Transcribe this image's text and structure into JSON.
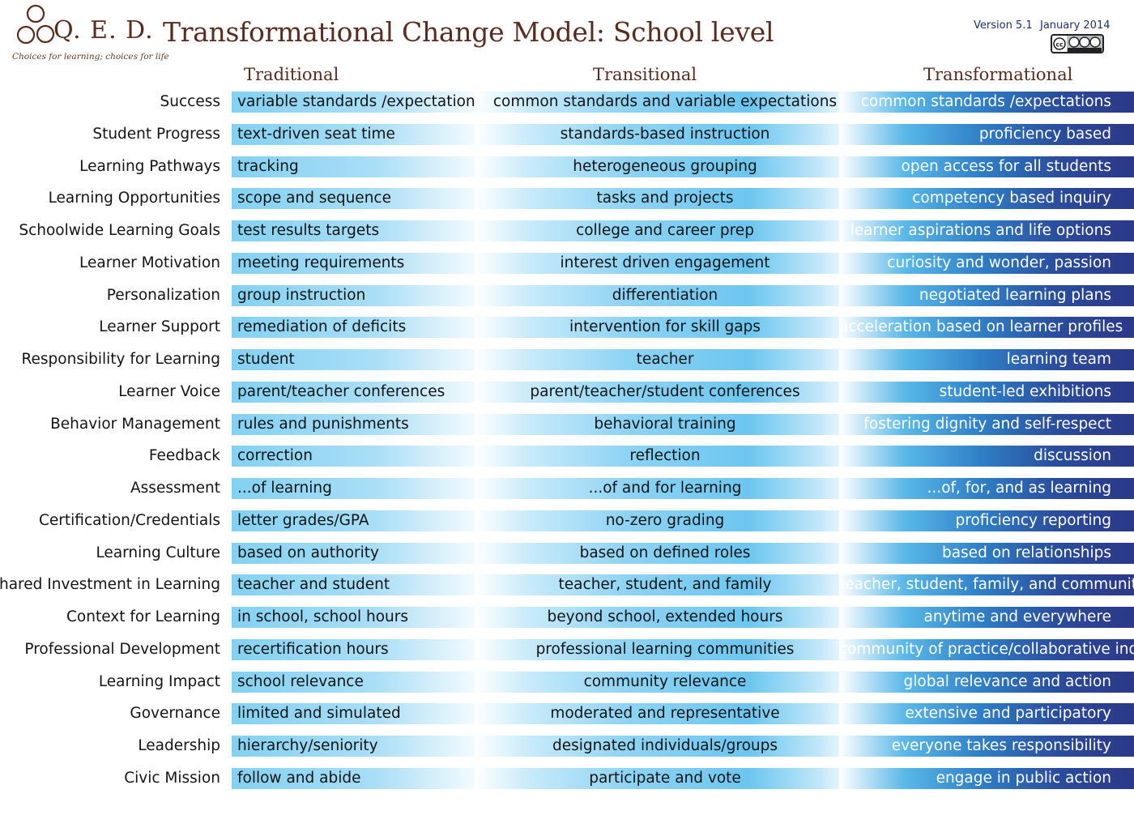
{
  "header": {
    "logo_text": "Q. E. D.",
    "tagline": "Choices for learning; choices for life",
    "title": "Transformational Change Model: School level",
    "version": "Version 5.1",
    "date": "January 2014",
    "license_icon": "creative-commons-by-nc-sa-icon"
  },
  "columns": {
    "traditional": "Traditional",
    "transitional": "Transitional",
    "transformational": "Transformational"
  },
  "colors": {
    "title_brown": "#5a2c1e",
    "traditional_bar": "#83d1f2",
    "transitional_bar": "#6cc6f0",
    "transformational_bar": "#2c3787",
    "version_text": "#1d2f7a"
  },
  "rows": [
    {
      "label": "Success",
      "traditional": "variable standards /expectations",
      "transitional": "common standards and variable expectations",
      "transformational": "common standards /expectations"
    },
    {
      "label": "Student Progress",
      "traditional": "text-driven seat time",
      "transitional": "standards-based instruction",
      "transformational": "proficiency based"
    },
    {
      "label": "Learning Pathways",
      "traditional": "tracking",
      "transitional": "heterogeneous grouping",
      "transformational": "open access for all students"
    },
    {
      "label": "Learning Opportunities",
      "traditional": "scope and sequence",
      "transitional": "tasks and projects",
      "transformational": "competency based inquiry"
    },
    {
      "label": "Schoolwide Learning Goals",
      "traditional": "test results targets",
      "transitional": "college and career prep",
      "transformational": "learner aspirations and life options"
    },
    {
      "label": "Learner Motivation",
      "traditional": "meeting requirements",
      "transitional": "interest driven engagement",
      "transformational": "curiosity and wonder, passion"
    },
    {
      "label": "Personalization",
      "traditional": "group instruction",
      "transitional": "differentiation",
      "transformational": "negotiated learning plans"
    },
    {
      "label": "Learner Support",
      "traditional": "remediation of deficits",
      "transitional": "intervention for skill gaps",
      "transformational": "acceleration based on learner profiles"
    },
    {
      "label": "Responsibility for Learning",
      "traditional": "student",
      "transitional": "teacher",
      "transformational": "learning team"
    },
    {
      "label": "Learner Voice",
      "traditional": "parent/teacher conferences",
      "transitional": "parent/teacher/student conferences",
      "transformational": "student-led exhibitions"
    },
    {
      "label": "Behavior Management",
      "traditional": "rules and punishments",
      "transitional": "behavioral training",
      "transformational": "fostering dignity and self-respect"
    },
    {
      "label": "Feedback",
      "traditional": "correction",
      "transitional": "reflection",
      "transformational": "discussion"
    },
    {
      "label": "Assessment",
      "traditional": "...of learning",
      "transitional": "...of and for learning",
      "transformational": "...of, for, and as learning"
    },
    {
      "label": "Certification/Credentials",
      "traditional": "letter grades/GPA",
      "transitional": "no-zero grading",
      "transformational": "proficiency reporting"
    },
    {
      "label": "Learning Culture",
      "traditional": "based on authority",
      "transitional": "based on  defined roles",
      "transformational": "based on relationships"
    },
    {
      "label": "Shared Investment in Learning",
      "traditional": "teacher and student",
      "transitional": "teacher, student, and family",
      "transformational": "teacher, student, family, and community"
    },
    {
      "label": "Context for Learning",
      "traditional": "in school, school hours",
      "transitional": "beyond school, extended hours",
      "transformational": "anytime and everywhere"
    },
    {
      "label": "Professional Development",
      "traditional": "recertification hours",
      "transitional": "professional learning communities",
      "transformational": "community of practice/collaborative inquiry"
    },
    {
      "label": "Learning Impact",
      "traditional": "school relevance",
      "transitional": "community relevance",
      "transformational": "global relevance and action"
    },
    {
      "label": "Governance",
      "traditional": "limited and simulated",
      "transitional": "moderated and representative",
      "transformational": "extensive and participatory"
    },
    {
      "label": "Leadership",
      "traditional": "hierarchy/seniority",
      "transitional": "designated individuals/groups",
      "transformational": "everyone takes responsibility"
    },
    {
      "label": "Civic Mission",
      "traditional": "follow and abide",
      "transitional": "participate and vote",
      "transformational": "engage in public action"
    }
  ]
}
